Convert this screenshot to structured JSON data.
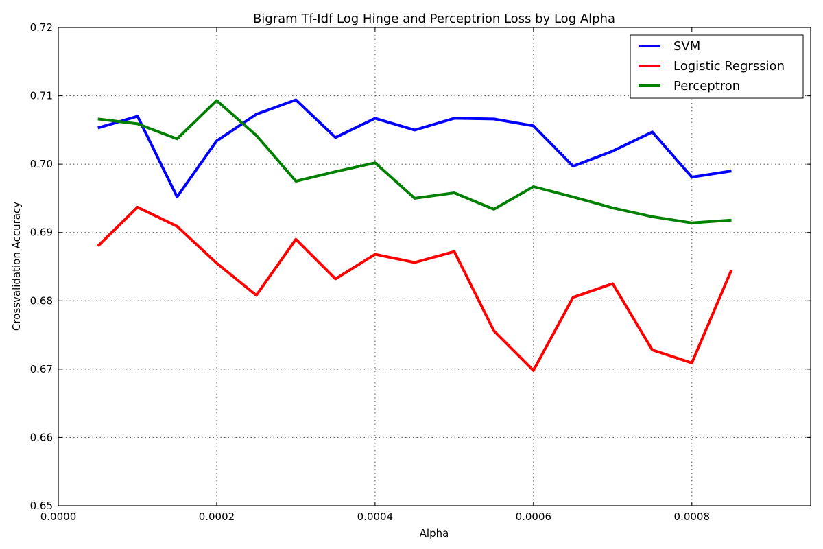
{
  "chart_data": {
    "type": "line",
    "title": "Bigram Tf-Idf Log Hinge and Perceptrion Loss by Log Alpha",
    "xlabel": "Alpha",
    "ylabel": "Crossvalidation Accuracy",
    "xlim": [
      0,
      0.00095
    ],
    "ylim": [
      0.65,
      0.72
    ],
    "xticks": [
      0,
      0.0002,
      0.0004,
      0.0006,
      0.0008
    ],
    "xtick_labels": [
      "0.0000",
      "0.0002",
      "0.0004",
      "0.0006",
      "0.0008"
    ],
    "yticks": [
      0.65,
      0.66,
      0.67,
      0.68,
      0.69,
      0.7,
      0.71,
      0.72
    ],
    "ytick_labels": [
      "0.65",
      "0.66",
      "0.67",
      "0.68",
      "0.69",
      "0.70",
      "0.71",
      "0.72"
    ],
    "grid": true,
    "legend_position": "top-right",
    "x": [
      5e-05,
      0.0001,
      0.00015,
      0.0002,
      0.00025,
      0.0003,
      0.00035,
      0.0004,
      0.00045,
      0.0005,
      0.00055,
      0.0006,
      0.00065,
      0.0007,
      0.00075,
      0.0008,
      0.00085
    ],
    "series": [
      {
        "name": "SVM",
        "color": "#0000ff",
        "values": [
          0.7053,
          0.707,
          0.6952,
          0.7034,
          0.7073,
          0.7094,
          0.7039,
          0.7067,
          0.705,
          0.7067,
          0.7066,
          0.7056,
          0.6997,
          0.7019,
          0.7047,
          0.6981,
          0.699
        ]
      },
      {
        "name": "Logistic Regrssion",
        "color": "#ff0000",
        "values": [
          0.688,
          0.6937,
          0.6909,
          0.6855,
          0.6808,
          0.689,
          0.6832,
          0.6868,
          0.6856,
          0.6872,
          0.6756,
          0.6698,
          0.6805,
          0.6825,
          0.6728,
          0.6709,
          0.6845
        ]
      },
      {
        "name": "Perceptron",
        "color": "#008000",
        "values": [
          0.7066,
          0.7059,
          0.7037,
          0.7093,
          0.7042,
          0.6975,
          0.6989,
          0.7002,
          0.695,
          0.6958,
          0.6934,
          0.6967,
          0.6952,
          0.6936,
          0.6923,
          0.6914,
          0.6918
        ]
      }
    ]
  }
}
